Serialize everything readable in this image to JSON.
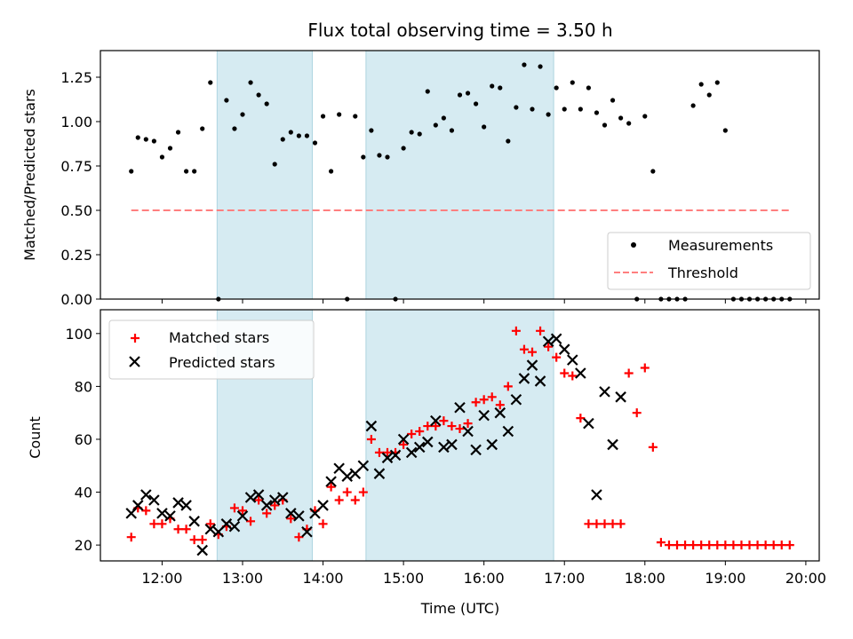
{
  "chart_data": [
    {
      "type": "scatter",
      "title": "Flux total observing time = 3.50 h",
      "ylabel": "Matched/Predicted stars",
      "xlabel": "",
      "xlim": [
        "11:14",
        "20:10"
      ],
      "ylim": [
        0,
        1.4
      ],
      "x_ticks": [
        "12:00",
        "13:00",
        "14:00",
        "15:00",
        "16:00",
        "17:00",
        "18:00",
        "19:00",
        "20:00"
      ],
      "y_ticks": [
        "0.00",
        "0.25",
        "0.50",
        "0.75",
        "1.00",
        "1.25"
      ],
      "shaded_intervals": [
        [
          "12:41",
          "13:52"
        ],
        [
          "14:32",
          "16:52"
        ]
      ],
      "legend_position": "lower right",
      "series": [
        {
          "name": "Measurements",
          "marker": "dot",
          "color": "#000000",
          "x": [
            "11:37",
            "11:42",
            "11:48",
            "11:54",
            "12:00",
            "12:06",
            "12:12",
            "12:18",
            "12:24",
            "12:30",
            "12:36",
            "12:42",
            "12:48",
            "12:54",
            "13:00",
            "13:06",
            "13:12",
            "13:18",
            "13:24",
            "13:30",
            "13:36",
            "13:42",
            "13:48",
            "13:54",
            "14:00",
            "14:06",
            "14:12",
            "14:18",
            "14:24",
            "14:30",
            "14:36",
            "14:42",
            "14:48",
            "14:54",
            "15:00",
            "15:06",
            "15:12",
            "15:18",
            "15:24",
            "15:30",
            "15:36",
            "15:42",
            "15:48",
            "15:54",
            "16:00",
            "16:06",
            "16:12",
            "16:18",
            "16:24",
            "16:30",
            "16:36",
            "16:42",
            "16:48",
            "16:54",
            "17:00",
            "17:06",
            "17:12",
            "17:18",
            "17:24",
            "17:30",
            "17:36",
            "17:42",
            "17:48",
            "17:54",
            "18:00",
            "18:06",
            "18:12",
            "18:18",
            "18:24",
            "18:30",
            "18:36",
            "18:42",
            "18:48",
            "18:54",
            "19:00",
            "19:06",
            "19:12",
            "19:18",
            "19:24",
            "19:30",
            "19:36",
            "19:42",
            "19:48"
          ],
          "y": [
            0.72,
            0.91,
            0.9,
            0.89,
            0.8,
            0.85,
            0.94,
            0.72,
            0.72,
            0.96,
            1.22,
            0.0,
            1.12,
            0.96,
            1.04,
            1.22,
            1.15,
            1.1,
            0.76,
            0.9,
            0.94,
            0.92,
            0.92,
            0.88,
            1.03,
            0.72,
            1.04,
            0.0,
            1.03,
            0.8,
            0.95,
            0.81,
            0.8,
            0.0,
            0.85,
            0.94,
            0.93,
            1.17,
            0.98,
            1.02,
            0.95,
            1.15,
            1.16,
            1.1,
            0.97,
            1.2,
            1.19,
            0.89,
            1.08,
            1.32,
            1.07,
            1.31,
            1.04,
            1.19,
            1.07,
            1.22,
            1.07,
            1.19,
            1.05,
            0.98,
            1.12,
            1.02,
            0.99,
            0.0,
            1.03,
            0.72,
            0.0,
            0.0,
            0.0,
            0.0,
            1.09,
            1.21,
            1.15,
            1.22,
            0.95,
            0.0,
            0.0,
            0.0,
            0.0,
            0.0,
            0.0,
            0.0,
            0.0
          ]
        },
        {
          "name": "Threshold",
          "style": "dashed",
          "color": "#ff7f7f",
          "x": [
            "11:37",
            "19:48"
          ],
          "y": [
            0.5,
            0.5
          ]
        }
      ]
    },
    {
      "type": "scatter",
      "title": "",
      "xlabel": "Time (UTC)",
      "ylabel": "Count",
      "xlim": [
        "11:14",
        "20:10"
      ],
      "ylim": [
        14,
        109
      ],
      "x_ticks": [
        "12:00",
        "13:00",
        "14:00",
        "15:00",
        "16:00",
        "17:00",
        "18:00",
        "19:00",
        "20:00"
      ],
      "y_ticks": [
        "20",
        "40",
        "60",
        "80",
        "100"
      ],
      "shaded_intervals": [
        [
          "12:41",
          "13:52"
        ],
        [
          "14:32",
          "16:52"
        ]
      ],
      "legend_position": "upper left",
      "series": [
        {
          "name": "Matched stars",
          "marker": "plus",
          "color": "#ff0000",
          "x": [
            "11:37",
            "11:42",
            "11:48",
            "11:54",
            "12:00",
            "12:06",
            "12:12",
            "12:18",
            "12:24",
            "12:30",
            "12:36",
            "12:42",
            "12:48",
            "12:54",
            "13:00",
            "13:06",
            "13:12",
            "13:18",
            "13:24",
            "13:30",
            "13:36",
            "13:42",
            "13:48",
            "13:54",
            "14:00",
            "14:06",
            "14:12",
            "14:18",
            "14:24",
            "14:30",
            "14:36",
            "14:42",
            "14:48",
            "14:54",
            "15:00",
            "15:06",
            "15:12",
            "15:18",
            "15:24",
            "15:30",
            "15:36",
            "15:42",
            "15:48",
            "15:54",
            "16:00",
            "16:06",
            "16:12",
            "16:18",
            "16:24",
            "16:30",
            "16:36",
            "16:42",
            "16:48",
            "16:54",
            "17:00",
            "17:06",
            "17:12",
            "17:18",
            "17:24",
            "17:30",
            "17:36",
            "17:42",
            "17:48",
            "17:54",
            "18:00",
            "18:06",
            "18:12",
            "18:18",
            "18:24",
            "18:30",
            "18:36",
            "18:42",
            "18:48",
            "18:54",
            "19:00",
            "19:06",
            "19:12",
            "19:18",
            "19:24",
            "19:30",
            "19:36",
            "19:42",
            "19:48"
          ],
          "y": [
            23,
            34,
            33,
            28,
            28,
            30,
            26,
            26,
            22,
            22,
            28,
            24,
            27,
            34,
            33,
            29,
            37,
            32,
            35,
            37,
            30,
            23,
            26,
            33,
            28,
            42,
            37,
            40,
            37,
            40,
            60,
            55,
            55,
            55,
            58,
            62,
            63,
            65,
            65,
            67,
            65,
            64,
            66,
            74,
            75,
            76,
            73,
            80,
            101,
            94,
            93,
            101,
            95,
            91,
            85,
            84,
            68,
            28,
            28,
            28,
            28,
            28,
            85,
            70,
            87,
            57,
            21,
            20,
            20,
            20,
            20,
            20,
            20,
            20,
            20,
            20,
            20,
            20,
            20,
            20,
            20,
            20,
            20
          ]
        },
        {
          "name": "Predicted stars",
          "marker": "x",
          "color": "#000000",
          "x": [
            "11:37",
            "11:42",
            "11:48",
            "11:54",
            "12:00",
            "12:06",
            "12:12",
            "12:18",
            "12:24",
            "12:30",
            "12:36",
            "12:42",
            "12:48",
            "12:54",
            "13:00",
            "13:06",
            "13:12",
            "13:18",
            "13:24",
            "13:30",
            "13:36",
            "13:42",
            "13:48",
            "13:54",
            "14:00",
            "14:06",
            "14:12",
            "14:18",
            "14:24",
            "14:30",
            "14:36",
            "14:42",
            "14:48",
            "14:54",
            "15:00",
            "15:06",
            "15:12",
            "15:18",
            "15:24",
            "15:30",
            "15:36",
            "15:42",
            "15:48",
            "15:54",
            "16:00",
            "16:06",
            "16:12",
            "16:18",
            "16:24",
            "16:30",
            "16:36",
            "16:42",
            "16:48",
            "16:54",
            "17:00",
            "17:06",
            "17:12",
            "17:18",
            "17:24",
            "17:30",
            "17:36",
            "17:42"
          ],
          "y": [
            32,
            35,
            39,
            37,
            32,
            31,
            36,
            35,
            29,
            18,
            26,
            25,
            28,
            27,
            31,
            38,
            39,
            35,
            37,
            38,
            32,
            31,
            25,
            32,
            35,
            44,
            49,
            46,
            47,
            50,
            65,
            47,
            53,
            54,
            60,
            55,
            57,
            59,
            67,
            57,
            58,
            72,
            63,
            56,
            69,
            58,
            70,
            63,
            75,
            83,
            88,
            82,
            97,
            98,
            94,
            90,
            85,
            66,
            39,
            78,
            58,
            76
          ]
        }
      ]
    }
  ]
}
